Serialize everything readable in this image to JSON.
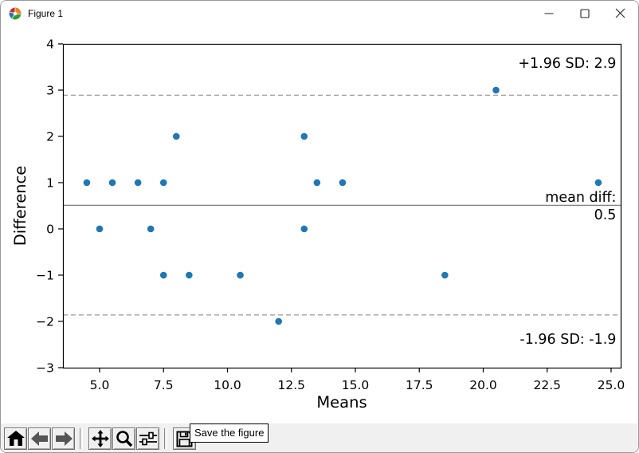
{
  "window": {
    "title": "Figure 1"
  },
  "chart_data": {
    "type": "scatter",
    "title": "",
    "xlabel": "Means",
    "ylabel": "Difference",
    "xlim": [
      3.567,
      25.374
    ],
    "ylim": [
      -3,
      4
    ],
    "grid": false,
    "legend": null,
    "marker_color": "#1f77b4",
    "x_ticks": {
      "values": [
        5,
        7.5,
        10,
        12.5,
        15,
        17.5,
        20,
        22.5,
        25
      ],
      "labels": [
        "5.0",
        "7.5",
        "10.0",
        "12.5",
        "15.0",
        "17.5",
        "20.0",
        "22.5",
        "25.0"
      ]
    },
    "y_ticks": {
      "values": [
        4,
        3,
        2,
        1,
        0,
        -1,
        -2,
        -3
      ],
      "labels": [
        "4",
        "3",
        "2",
        "1",
        "0",
        "−1",
        "−2",
        "−3"
      ]
    },
    "points": [
      [
        4.5,
        1
      ],
      [
        5,
        0
      ],
      [
        5.5,
        1
      ],
      [
        6.5,
        1
      ],
      [
        7,
        0
      ],
      [
        7.5,
        1
      ],
      [
        7.5,
        -1
      ],
      [
        8,
        2
      ],
      [
        8.5,
        -1
      ],
      [
        10.5,
        -1
      ],
      [
        12,
        -2
      ],
      [
        13,
        2
      ],
      [
        13,
        0
      ],
      [
        13.5,
        1
      ],
      [
        14.5,
        1
      ],
      [
        18.5,
        -1
      ],
      [
        20.5,
        3
      ],
      [
        24.5,
        1
      ]
    ],
    "lines": [
      {
        "name": "mean-line",
        "y": 0.51,
        "style": "solid",
        "color": "#808080"
      },
      {
        "name": "upper-loa-line",
        "y": 2.89,
        "style": "dashed",
        "color": "#9a9a9a"
      },
      {
        "name": "lower-loa-line",
        "y": -1.86,
        "style": "dashed",
        "color": "#9a9a9a"
      }
    ],
    "annotations": [
      {
        "name": "upper-loa-label",
        "text": "+1.96 SD: 2.9",
        "x": 25.2,
        "y": 3.48,
        "ha": "end"
      },
      {
        "name": "mean-diff-label",
        "text": "mean diff:",
        "x": 25.2,
        "y": 0.59,
        "ha": "end"
      },
      {
        "name": "mean-diff-value",
        "text": "0.5",
        "x": 25.2,
        "y": 0.21,
        "ha": "end"
      },
      {
        "name": "lower-loa-label",
        "text": "-1.96 SD: -1.9",
        "x": 25.2,
        "y": -2.48,
        "ha": "end"
      }
    ]
  },
  "toolbar": {
    "buttons": [
      {
        "name": "home",
        "icon": "home-icon"
      },
      {
        "name": "back",
        "icon": "back-arrow-icon"
      },
      {
        "name": "forward",
        "icon": "forward-arrow-icon"
      },
      {
        "name": "pan",
        "icon": "pan-arrows-icon"
      },
      {
        "name": "zoom",
        "icon": "magnifier-icon"
      },
      {
        "name": "configure-subplots",
        "icon": "sliders-icon"
      },
      {
        "name": "save",
        "icon": "floppy-disk-icon"
      }
    ],
    "tooltip": "Save the figure"
  }
}
